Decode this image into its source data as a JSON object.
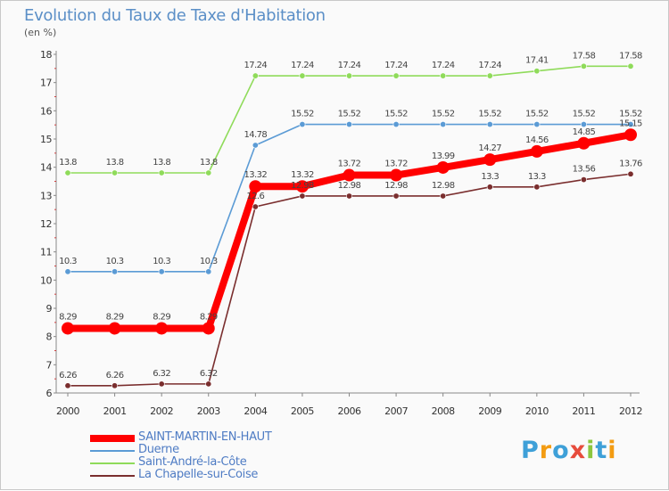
{
  "header": {
    "title": "Evolution du Taux de Taxe d'Habitation",
    "unit": "(en %)"
  },
  "chart_data": {
    "type": "line",
    "title": "Evolution du Taux de Taxe d'Habitation",
    "ylabel": "(en %)",
    "xlabel": "",
    "categories": [
      "2000",
      "2001",
      "2002",
      "2003",
      "2004",
      "2005",
      "2006",
      "2007",
      "2008",
      "2009",
      "2010",
      "2011",
      "2012"
    ],
    "ylim": [
      6,
      18
    ],
    "yticks": [
      "6",
      "7",
      "8",
      "9",
      "10",
      "11",
      "12",
      "13",
      "14",
      "15",
      "16",
      "17",
      "18"
    ],
    "grid": false,
    "legend_position": "bottom-left",
    "series": [
      {
        "name": "SAINT-MARTIN-EN-HAUT",
        "color": "#ff0000",
        "values": [
          8.29,
          8.29,
          8.29,
          8.29,
          13.32,
          13.32,
          13.72,
          13.72,
          13.99,
          14.27,
          14.56,
          14.85,
          15.15
        ],
        "labels": [
          "8.29",
          "8.29",
          "8.29",
          "8.29",
          "13.32",
          "13.32",
          "13.72",
          "13.72",
          "13.99",
          "14.27",
          "14.56",
          "14.85",
          "15.15"
        ]
      },
      {
        "name": "Duerne",
        "color": "#5b9bd5",
        "values": [
          10.3,
          10.3,
          10.3,
          10.3,
          14.78,
          15.52,
          15.52,
          15.52,
          15.52,
          15.52,
          15.52,
          15.52,
          15.52
        ],
        "labels": [
          "10.3",
          "10.3",
          "10.3",
          "10.3",
          "14.78",
          "15.52",
          "15.52",
          "15.52",
          "15.52",
          "15.52",
          "15.52",
          "15.52",
          "15.52"
        ]
      },
      {
        "name": "Saint-André-la-Côte",
        "color": "#8fdb5a",
        "values": [
          13.8,
          13.8,
          13.8,
          13.8,
          17.24,
          17.24,
          17.24,
          17.24,
          17.24,
          17.24,
          17.41,
          17.58,
          17.58
        ],
        "labels": [
          "13.8",
          "13.8",
          "13.8",
          "13.8",
          "17.24",
          "17.24",
          "17.24",
          "17.24",
          "17.24",
          "17.24",
          "17.41",
          "17.58",
          "17.58"
        ]
      },
      {
        "name": "La Chapelle-sur-Coise",
        "color": "#7a2e2e",
        "values": [
          6.26,
          6.26,
          6.32,
          6.32,
          12.6,
          12.98,
          12.98,
          12.98,
          12.98,
          13.3,
          13.3,
          13.56,
          13.76
        ],
        "labels": [
          "6.26",
          "6.26",
          "6.32",
          "6.32",
          "12.6",
          "12.98",
          "12.98",
          "12.98",
          "12.98",
          "13.3",
          "13.3",
          "13.56",
          "13.76"
        ]
      }
    ]
  },
  "logo": {
    "letters": [
      "P",
      "r",
      "o",
      "x",
      "i",
      "t",
      "i"
    ],
    "colors": [
      "#3ea0d8",
      "#f39c12",
      "#3ea0d8",
      "#e74c3c",
      "#8cc63f",
      "#3ea0d8",
      "#f39c12"
    ]
  }
}
